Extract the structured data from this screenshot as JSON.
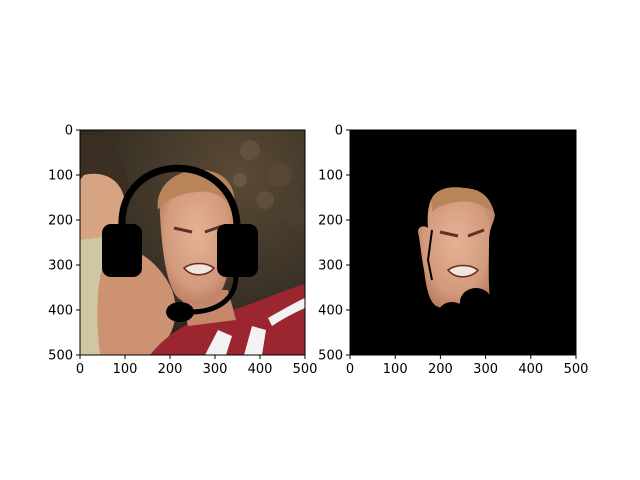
{
  "chart_data": [
    {
      "type": "image",
      "subject": "cropped photo of a face wearing a drawn headset overlay",
      "xlim": [
        0,
        500
      ],
      "ylim": [
        500,
        0
      ],
      "xticks": [
        0,
        100,
        200,
        300,
        400,
        500
      ],
      "yticks": [
        0,
        100,
        200,
        300,
        400,
        500
      ],
      "xtick_labels": [
        "0",
        "100",
        "200",
        "300",
        "400",
        "500"
      ],
      "ytick_labels": [
        "0",
        "100",
        "200",
        "300",
        "400",
        "500"
      ],
      "grid": false
    },
    {
      "type": "image",
      "subject": "segmented face mask on black background",
      "xlim": [
        0,
        500
      ],
      "ylim": [
        500,
        0
      ],
      "xticks": [
        0,
        100,
        200,
        300,
        400,
        500
      ],
      "yticks": [
        0,
        100,
        200,
        300,
        400,
        500
      ],
      "xtick_labels": [
        "0",
        "100",
        "200",
        "300",
        "400",
        "500"
      ],
      "ytick_labels": [
        "0",
        "100",
        "200",
        "300",
        "400",
        "500"
      ],
      "grid": false
    }
  ],
  "colors": {
    "jersey_red": "#9c2630",
    "jersey_white": "#f2f2f2",
    "skin": "#d9a184",
    "skin_shadow": "#b9785e",
    "hair": "#b8855a",
    "crowd_dark": "#2f2a22",
    "headset": "#000000",
    "mask_bg": "#000000"
  }
}
